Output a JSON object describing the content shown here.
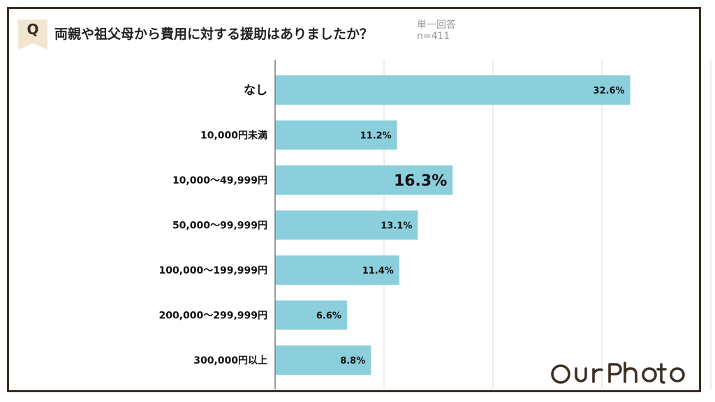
{
  "header": {
    "q_label": "Q",
    "question": "両親や祖父母から費用に対する援助はありましたか？",
    "answer_type": "単一回答",
    "sample_size": "n=411"
  },
  "brand": {
    "logo_text": "OurPhoto"
  },
  "colors": {
    "bar": "#8ccfdc",
    "frame": "#3b2f24",
    "badge": "#f1e6cf",
    "grid": "#d9d9d9",
    "axis": "#7a7a7a"
  },
  "chart_data": {
    "type": "bar",
    "orientation": "horizontal",
    "categories": [
      "なし",
      "10,000円未満",
      "10,000〜49,999円",
      "50,000〜99,999円",
      "100,000〜199,999円",
      "200,000〜299,999円",
      "300,000円以上"
    ],
    "values": [
      32.6,
      11.2,
      16.3,
      13.1,
      11.4,
      6.6,
      8.8
    ],
    "value_labels": [
      "32.6%",
      "11.2%",
      "16.3%",
      "13.1%",
      "11.4%",
      "6.6%",
      "8.8%"
    ],
    "highlight_labels": [
      true,
      false,
      true,
      false,
      false,
      false,
      false
    ],
    "xlim": [
      0,
      40
    ],
    "grid": true,
    "title": "",
    "xlabel": "",
    "ylabel": ""
  }
}
